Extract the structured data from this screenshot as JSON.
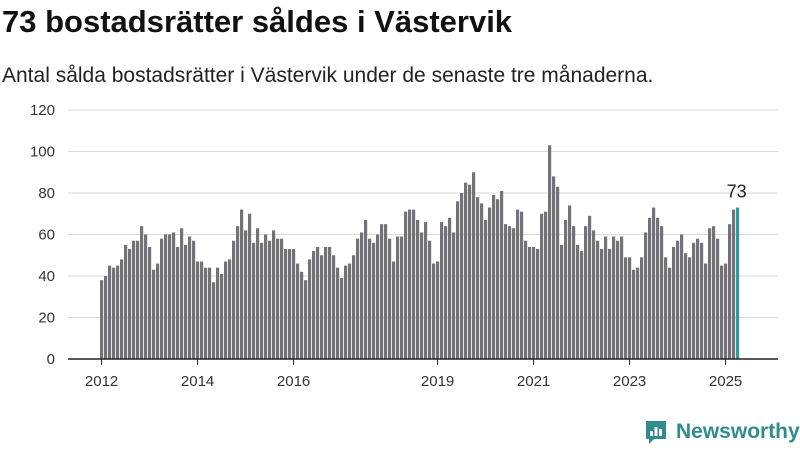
{
  "header": {
    "title": "73 bostadsrätter såldes i Västervik",
    "subtitle": "Antal sålda bostadsrätter i Västervik under de senaste tre månaderna."
  },
  "brand": {
    "logo_text": "Newsworthy",
    "logo_icon": "bar-chart-speech-bubble-icon",
    "color": "#2f8d8a"
  },
  "chart_data": {
    "type": "bar",
    "ylim": [
      0,
      120
    ],
    "yticks": [
      0,
      20,
      40,
      60,
      80,
      100,
      120
    ],
    "xticks": [
      "2012",
      "2014",
      "2016",
      "2019",
      "2021",
      "2023",
      "2025"
    ],
    "bar_color": "#737277",
    "highlight_color": "#2f9d93",
    "last_value_label": "73",
    "values": [
      38,
      40,
      45,
      44,
      45,
      48,
      55,
      53,
      57,
      57,
      64,
      60,
      54,
      43,
      46,
      58,
      60,
      60,
      61,
      54,
      63,
      55,
      59,
      57,
      47,
      47,
      44,
      44,
      37,
      44,
      41,
      47,
      48,
      57,
      64,
      72,
      62,
      70,
      56,
      63,
      56,
      60,
      57,
      62,
      58,
      58,
      53,
      53,
      53,
      46,
      42,
      38,
      48,
      52,
      54,
      50,
      54,
      54,
      50,
      44,
      39,
      45,
      46,
      50,
      58,
      61,
      67,
      58,
      56,
      60,
      65,
      65,
      58,
      47,
      59,
      59,
      71,
      72,
      72,
      67,
      61,
      66,
      57,
      46,
      47,
      66,
      64,
      68,
      61,
      76,
      80,
      85,
      84,
      90,
      78,
      75,
      67,
      73,
      79,
      77,
      81,
      65,
      64,
      63,
      72,
      71,
      57,
      54,
      54,
      53,
      70,
      71,
      103,
      88,
      83,
      55,
      67,
      74,
      64,
      55,
      52,
      64,
      69,
      62,
      57,
      53,
      59,
      53,
      59,
      57,
      59,
      49,
      49,
      43,
      44,
      49,
      61,
      68,
      73,
      68,
      64,
      49,
      44,
      54,
      57,
      60,
      51,
      49,
      56,
      58,
      56,
      46,
      63,
      64,
      58,
      45,
      46,
      65,
      72,
      73
    ]
  }
}
